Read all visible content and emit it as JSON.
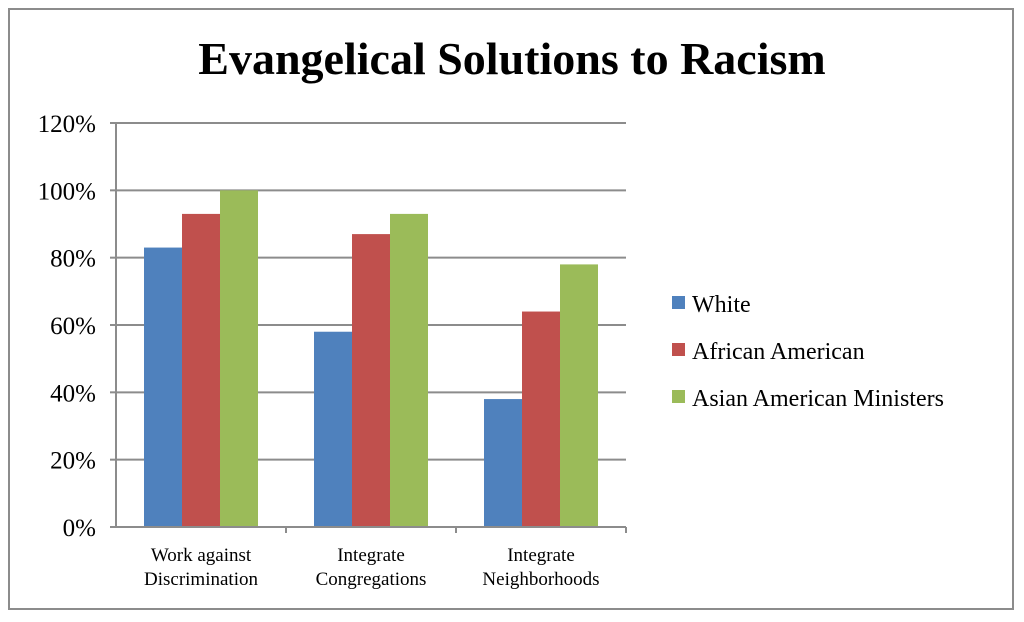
{
  "chart_data": {
    "type": "bar",
    "title": "Evangelical Solutions to Racism",
    "categories": [
      [
        "Work against",
        "Discrimination"
      ],
      [
        "Integrate",
        "Congregations"
      ],
      [
        "Integrate",
        "Neighborhoods"
      ]
    ],
    "series": [
      {
        "name": "White",
        "color": "#4f81bd",
        "values": [
          0.83,
          0.58,
          0.38
        ]
      },
      {
        "name": "African American",
        "color": "#c0504d",
        "values": [
          0.93,
          0.87,
          0.64
        ]
      },
      {
        "name": "Asian American Ministers",
        "color": "#9bbb59",
        "values": [
          1.0,
          0.93,
          0.78
        ]
      }
    ],
    "y_ticks": [
      "0%",
      "20%",
      "40%",
      "60%",
      "80%",
      "100%",
      "120%"
    ],
    "ylim": [
      0,
      1.2
    ],
    "grid": true,
    "legend": "right"
  }
}
